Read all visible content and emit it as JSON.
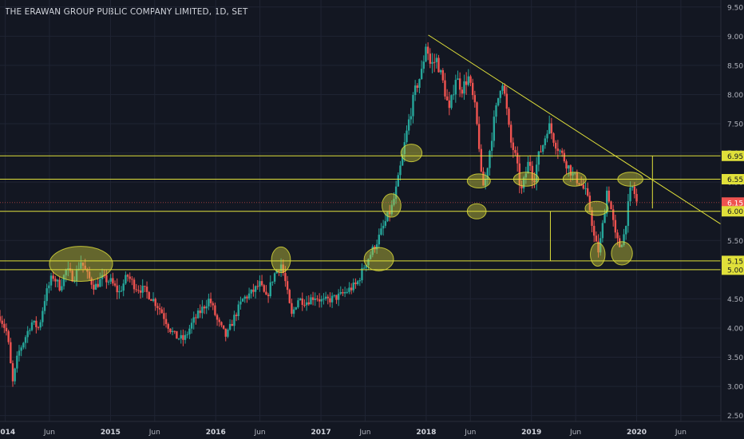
{
  "chart_data": {
    "type": "candlestick",
    "title": "THE ERAWAN GROUP PUBLIC COMPANY LIMITED, 1D, SET",
    "y_ticks": [
      "9.50",
      "9.00",
      "8.50",
      "8.00",
      "7.50",
      "7.00",
      "6.50",
      "6.00",
      "5.50",
      "5.00",
      "4.50",
      "4.00",
      "3.50",
      "3.00",
      "2.50"
    ],
    "ylim": [
      2.4,
      9.62
    ],
    "x_ticks": [
      {
        "label": "2014",
        "t": 2014.0,
        "bold": true
      },
      {
        "label": "Jun",
        "t": 2014.42
      },
      {
        "label": "2015",
        "t": 2015.0,
        "bold": true
      },
      {
        "label": "Jun",
        "t": 2015.42
      },
      {
        "label": "2016",
        "t": 2016.0,
        "bold": true
      },
      {
        "label": "Jun",
        "t": 2016.42
      },
      {
        "label": "2017",
        "t": 2017.0,
        "bold": true
      },
      {
        "label": "Jun",
        "t": 2017.42
      },
      {
        "label": "2018",
        "t": 2018.0,
        "bold": true
      },
      {
        "label": "Jun",
        "t": 2018.42
      },
      {
        "label": "2019",
        "t": 2019.0,
        "bold": true
      },
      {
        "label": "Jun",
        "t": 2019.42
      },
      {
        "label": "2020",
        "t": 2020.0,
        "bold": true
      },
      {
        "label": "Jun",
        "t": 2020.42
      }
    ],
    "xlim": [
      2013.95,
      2020.8
    ],
    "price_path": [
      [
        2013.95,
        4.2
      ],
      [
        2014.02,
        3.9
      ],
      [
        2014.07,
        3.05
      ],
      [
        2014.12,
        3.55
      ],
      [
        2014.18,
        3.8
      ],
      [
        2014.25,
        4.1
      ],
      [
        2014.32,
        4.0
      ],
      [
        2014.38,
        4.55
      ],
      [
        2014.45,
        4.9
      ],
      [
        2014.52,
        4.7
      ],
      [
        2014.58,
        5.0
      ],
      [
        2014.65,
        4.85
      ],
      [
        2014.72,
        5.15
      ],
      [
        2014.78,
        4.9
      ],
      [
        2014.85,
        4.7
      ],
      [
        2014.92,
        4.85
      ],
      [
        2015.0,
        4.8
      ],
      [
        2015.08,
        4.6
      ],
      [
        2015.16,
        4.9
      ],
      [
        2015.24,
        4.7
      ],
      [
        2015.32,
        4.65
      ],
      [
        2015.4,
        4.5
      ],
      [
        2015.48,
        4.3
      ],
      [
        2015.56,
        4.0
      ],
      [
        2015.62,
        3.85
      ],
      [
        2015.7,
        3.8
      ],
      [
        2015.78,
        4.1
      ],
      [
        2015.86,
        4.3
      ],
      [
        2015.94,
        4.5
      ],
      [
        2016.02,
        4.1
      ],
      [
        2016.1,
        3.85
      ],
      [
        2016.18,
        4.2
      ],
      [
        2016.26,
        4.5
      ],
      [
        2016.34,
        4.6
      ],
      [
        2016.42,
        4.75
      ],
      [
        2016.48,
        4.5
      ],
      [
        2016.55,
        4.9
      ],
      [
        2016.62,
        5.1
      ],
      [
        2016.66,
        4.8
      ],
      [
        2016.72,
        4.2
      ],
      [
        2016.78,
        4.5
      ],
      [
        2016.86,
        4.45
      ],
      [
        2016.94,
        4.55
      ],
      [
        2017.02,
        4.45
      ],
      [
        2017.1,
        4.5
      ],
      [
        2017.18,
        4.55
      ],
      [
        2017.26,
        4.65
      ],
      [
        2017.34,
        4.75
      ],
      [
        2017.42,
        5.1
      ],
      [
        2017.48,
        5.3
      ],
      [
        2017.55,
        5.55
      ],
      [
        2017.62,
        5.85
      ],
      [
        2017.68,
        6.1
      ],
      [
        2017.73,
        6.5
      ],
      [
        2017.78,
        7.0
      ],
      [
        2017.84,
        7.6
      ],
      [
        2017.9,
        8.1
      ],
      [
        2017.96,
        8.4
      ],
      [
        2018.0,
        8.9
      ],
      [
        2018.04,
        8.5
      ],
      [
        2018.1,
        8.6
      ],
      [
        2018.16,
        8.2
      ],
      [
        2018.22,
        7.7
      ],
      [
        2018.28,
        8.3
      ],
      [
        2018.34,
        8.1
      ],
      [
        2018.4,
        8.3
      ],
      [
        2018.46,
        7.8
      ],
      [
        2018.5,
        7.2
      ],
      [
        2018.53,
        6.4
      ],
      [
        2018.56,
        6.5
      ],
      [
        2018.6,
        7.0
      ],
      [
        2018.64,
        7.5
      ],
      [
        2018.68,
        7.9
      ],
      [
        2018.72,
        8.3
      ],
      [
        2018.76,
        7.8
      ],
      [
        2018.8,
        7.2
      ],
      [
        2018.84,
        7.0
      ],
      [
        2018.88,
        6.6
      ],
      [
        2018.9,
        6.3
      ],
      [
        2018.94,
        6.6
      ],
      [
        2018.98,
        6.9
      ],
      [
        2019.02,
        6.5
      ],
      [
        2019.06,
        6.9
      ],
      [
        2019.12,
        7.2
      ],
      [
        2019.16,
        7.5
      ],
      [
        2019.22,
        7.2
      ],
      [
        2019.28,
        7.0
      ],
      [
        2019.34,
        6.8
      ],
      [
        2019.4,
        6.6
      ],
      [
        2019.46,
        6.5
      ],
      [
        2019.52,
        6.3
      ],
      [
        2019.56,
        6.0
      ],
      [
        2019.6,
        5.5
      ],
      [
        2019.64,
        5.3
      ],
      [
        2019.68,
        5.8
      ],
      [
        2019.72,
        6.4
      ],
      [
        2019.76,
        6.0
      ],
      [
        2019.8,
        5.55
      ],
      [
        2019.84,
        5.4
      ],
      [
        2019.88,
        5.6
      ],
      [
        2019.92,
        6.1
      ],
      [
        2019.95,
        6.45
      ],
      [
        2019.98,
        6.3
      ],
      [
        2020.0,
        6.15
      ]
    ],
    "horizontal_levels": [
      {
        "price": 6.95,
        "label": "6.95"
      },
      {
        "price": 6.55,
        "label": "6.55"
      },
      {
        "price": 6.15,
        "label": "6.15",
        "current": true
      },
      {
        "price": 6.0,
        "label": "6.00"
      },
      {
        "price": 5.15,
        "label": "5.15"
      },
      {
        "price": 5.0,
        "label": "5.00"
      }
    ],
    "trendline": [
      [
        2018.02,
        9.02
      ],
      [
        2020.8,
        5.78
      ]
    ],
    "vertical_lines": [
      {
        "t": 2019.18,
        "from": 5.15,
        "to": 6.0
      },
      {
        "t": 2020.15,
        "from": 6.05,
        "to": 6.95
      }
    ],
    "ellipses": [
      {
        "t": 2014.72,
        "p": 5.1,
        "rt": 0.3,
        "rp": 0.3
      },
      {
        "t": 2016.62,
        "p": 5.17,
        "rt": 0.09,
        "rp": 0.22
      },
      {
        "t": 2017.55,
        "p": 5.18,
        "rt": 0.14,
        "rp": 0.2
      },
      {
        "t": 2017.67,
        "p": 6.1,
        "rt": 0.09,
        "rp": 0.2
      },
      {
        "t": 2017.86,
        "p": 7.0,
        "rt": 0.1,
        "rp": 0.15
      },
      {
        "t": 2018.5,
        "p": 6.52,
        "rt": 0.11,
        "rp": 0.12
      },
      {
        "t": 2018.48,
        "p": 6.0,
        "rt": 0.09,
        "rp": 0.13
      },
      {
        "t": 2018.95,
        "p": 6.55,
        "rt": 0.12,
        "rp": 0.12
      },
      {
        "t": 2019.41,
        "p": 6.55,
        "rt": 0.11,
        "rp": 0.12
      },
      {
        "t": 2019.62,
        "p": 6.05,
        "rt": 0.11,
        "rp": 0.12
      },
      {
        "t": 2019.63,
        "p": 5.26,
        "rt": 0.07,
        "rp": 0.2
      },
      {
        "t": 2019.86,
        "p": 5.28,
        "rt": 0.1,
        "rp": 0.2
      },
      {
        "t": 2019.94,
        "p": 6.55,
        "rt": 0.12,
        "rp": 0.12
      }
    ],
    "colors": {
      "background": "#131722",
      "grid": "#1f2433",
      "up": "#26a69a",
      "down": "#ef5350",
      "annotation": "#e0e03a",
      "ellipse_fill": "rgba(200,200,60,0.45)",
      "current_label": "#ef5350",
      "axis_text": "#b2b5be"
    }
  }
}
